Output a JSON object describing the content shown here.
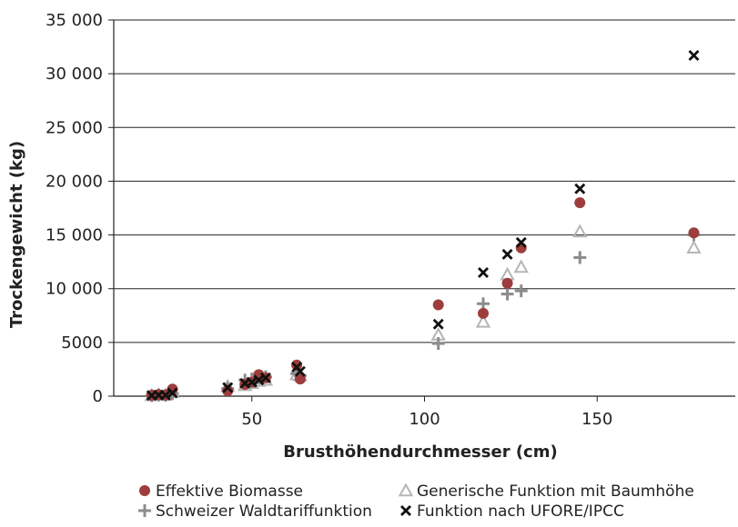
{
  "chart_data": {
    "type": "scatter",
    "title": "",
    "xlabel": "Brusthöhendurchmesser (cm)",
    "ylabel": "Trockengewicht (kg)",
    "xlim": [
      10,
      190
    ],
    "ylim": [
      0,
      35000
    ],
    "x_ticks": [
      50,
      100,
      150
    ],
    "x_tick_labels": [
      "50",
      "100",
      "150"
    ],
    "y_ticks": [
      0,
      5000,
      10000,
      15000,
      20000,
      25000,
      30000,
      35000
    ],
    "y_tick_labels": [
      "0",
      "5000",
      "10 000",
      "15 000",
      "20 000",
      "25 000",
      "30 000",
      "35 000"
    ],
    "grid": "horizontal",
    "legend_position": "bottom",
    "series": [
      {
        "name": "Effektive Biomasse",
        "marker": "circle",
        "color": "#9e3d3d",
        "points": [
          [
            21,
            80
          ],
          [
            23,
            150
          ],
          [
            25,
            100
          ],
          [
            27,
            650
          ],
          [
            43,
            500
          ],
          [
            48,
            1100
          ],
          [
            50,
            1300
          ],
          [
            52,
            2000
          ],
          [
            54,
            1700
          ],
          [
            63,
            2900
          ],
          [
            64,
            1600
          ],
          [
            104,
            8500
          ],
          [
            117,
            7700
          ],
          [
            124,
            10500
          ],
          [
            128,
            13800
          ],
          [
            145,
            18000
          ],
          [
            178,
            15200
          ]
        ]
      },
      {
        "name": "Generische Funktion mit Baumhöhe",
        "marker": "triangle",
        "color": "#b5b5b5",
        "points": [
          [
            21,
            60
          ],
          [
            23,
            120
          ],
          [
            25,
            90
          ],
          [
            27,
            350
          ],
          [
            43,
            900
          ],
          [
            48,
            1000
          ],
          [
            50,
            1200
          ],
          [
            52,
            1400
          ],
          [
            54,
            1500
          ],
          [
            63,
            2000
          ],
          [
            64,
            1900
          ],
          [
            104,
            5700
          ],
          [
            117,
            6900
          ],
          [
            124,
            11300
          ],
          [
            128,
            12000
          ],
          [
            145,
            15300
          ],
          [
            178,
            13800
          ]
        ]
      },
      {
        "name": "Schweizer Waldtariffunktion",
        "marker": "plus",
        "color": "#8c8c8c",
        "points": [
          [
            21,
            50
          ],
          [
            23,
            100
          ],
          [
            25,
            80
          ],
          [
            27,
            250
          ],
          [
            43,
            700
          ],
          [
            48,
            1500
          ],
          [
            50,
            1600
          ],
          [
            52,
            1700
          ],
          [
            54,
            1800
          ],
          [
            63,
            2100
          ],
          [
            64,
            1900
          ],
          [
            104,
            4900
          ],
          [
            117,
            8600
          ],
          [
            124,
            9500
          ],
          [
            128,
            9800
          ],
          [
            145,
            12900
          ],
          [
            178,
            15000
          ]
        ]
      },
      {
        "name": "Funktion nach UFORE/IPCC",
        "marker": "x",
        "color": "#111111",
        "points": [
          [
            21,
            60
          ],
          [
            23,
            110
          ],
          [
            25,
            90
          ],
          [
            27,
            300
          ],
          [
            43,
            800
          ],
          [
            48,
            1200
          ],
          [
            50,
            1300
          ],
          [
            52,
            1500
          ],
          [
            54,
            1700
          ],
          [
            63,
            2700
          ],
          [
            64,
            2300
          ],
          [
            104,
            6700
          ],
          [
            117,
            11500
          ],
          [
            124,
            13200
          ],
          [
            128,
            14300
          ],
          [
            145,
            19300
          ],
          [
            178,
            31700
          ]
        ]
      }
    ]
  }
}
